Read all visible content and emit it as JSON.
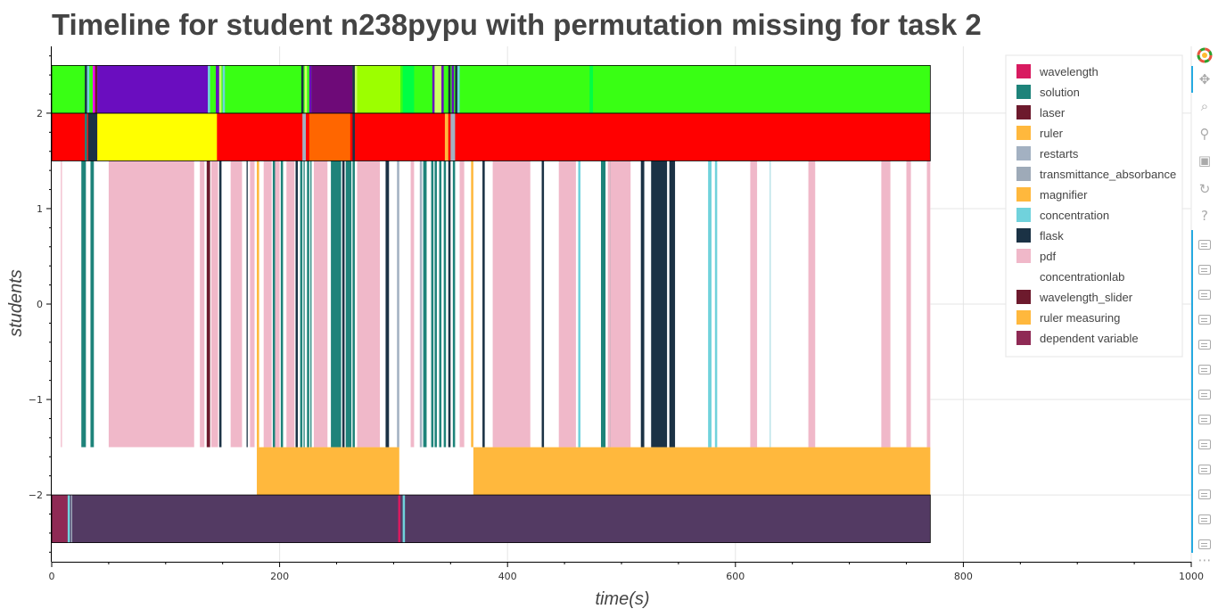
{
  "chart_data": {
    "type": "timeline",
    "title": "Timeline for student n238pypu with permutation missing for task 2",
    "xlabel": "time(s)",
    "ylabel": "students",
    "xlim": [
      0,
      1000
    ],
    "ylim": [
      -2.7,
      2.7
    ],
    "x_ticks": [
      0,
      200,
      400,
      600,
      800,
      1000
    ],
    "y_ticks": [
      -2,
      -1,
      0,
      1,
      2
    ],
    "y_tick_labels": [
      "−2",
      "−1",
      "0",
      "1",
      "2"
    ],
    "grid": true,
    "legend_placement": "top-right",
    "legend": [
      {
        "label": "wavelength",
        "color": "#d81b60"
      },
      {
        "label": "solution",
        "color": "#1e837a"
      },
      {
        "label": "laser",
        "color": "#6d1a2d"
      },
      {
        "label": "ruler",
        "color": "#ffb83d"
      },
      {
        "label": "restarts",
        "color": "#a3b1c2"
      },
      {
        "label": "transmittance_absorbance",
        "color": "#9eaab8"
      },
      {
        "label": "magnifier",
        "color": "#ffb83d"
      },
      {
        "label": "concentration",
        "color": "#70d2dc"
      },
      {
        "label": "flask",
        "color": "#1b3245"
      },
      {
        "label": "pdf",
        "color": "#f0b8c9"
      },
      {
        "label": "concentrationlab",
        "color": "#ffffff"
      },
      {
        "label": "wavelength_slider",
        "color": "#6d1a2d"
      },
      {
        "label": "ruler measuring",
        "color": "#ffb83d"
      },
      {
        "label": "dependent variable",
        "color": "#8f2a55"
      }
    ],
    "rows": [
      {
        "y_range": [
          2,
          2.5
        ],
        "base_color": "#39ff14",
        "segments": [
          {
            "start": 29,
            "end": 31,
            "color": "#1b3245"
          },
          {
            "start": 31,
            "end": 33,
            "color": "#70d2dc"
          },
          {
            "start": 36,
            "end": 38,
            "color": "#ff00ff"
          },
          {
            "start": 38,
            "end": 40,
            "color": "#6d1a2d"
          },
          {
            "start": 40,
            "end": 137,
            "color": "#6a0dbf"
          },
          {
            "start": 137,
            "end": 139,
            "color": "#70d2dc"
          },
          {
            "start": 144,
            "end": 147,
            "color": "#6a0dbf"
          },
          {
            "start": 147,
            "end": 149,
            "color": "#ccff66"
          },
          {
            "start": 150,
            "end": 152,
            "color": "#70d2dc"
          },
          {
            "start": 219,
            "end": 221,
            "color": "#1b3245"
          },
          {
            "start": 222,
            "end": 224,
            "color": "#ccff66"
          },
          {
            "start": 226,
            "end": 228,
            "color": "#6a0dbf"
          },
          {
            "start": 228,
            "end": 264,
            "color": "#6e0a78"
          },
          {
            "start": 264,
            "end": 266,
            "color": "#1b3245"
          },
          {
            "start": 266,
            "end": 268,
            "color": "#ccff66"
          },
          {
            "start": 268,
            "end": 306,
            "color": "#9cff00"
          },
          {
            "start": 306,
            "end": 308,
            "color": "#39ff14"
          },
          {
            "start": 308,
            "end": 318,
            "color": "#00ff44"
          },
          {
            "start": 334,
            "end": 336,
            "color": "#6a0dbf"
          },
          {
            "start": 336,
            "end": 342,
            "color": "#ccff66"
          },
          {
            "start": 342,
            "end": 344,
            "color": "#6a0dbf"
          },
          {
            "start": 348,
            "end": 350,
            "color": "#1b3245"
          },
          {
            "start": 351,
            "end": 353,
            "color": "#6a0dbf"
          },
          {
            "start": 354,
            "end": 356,
            "color": "#1b3245"
          },
          {
            "start": 356,
            "end": 358,
            "color": "#70d2dc"
          },
          {
            "start": 472,
            "end": 475,
            "color": "#00ff44"
          }
        ]
      },
      {
        "y_range": [
          1.5,
          2
        ],
        "base_color": "#ff0000",
        "segments": [
          {
            "start": 29,
            "end": 31,
            "color": "#1e837a"
          },
          {
            "start": 32,
            "end": 33,
            "color": "#70d2dc"
          },
          {
            "start": 32,
            "end": 40,
            "color": "#1b3245"
          },
          {
            "start": 40,
            "end": 145,
            "color": "#ffff00"
          },
          {
            "start": 220,
            "end": 223,
            "color": "#a3b1c2"
          },
          {
            "start": 226,
            "end": 262,
            "color": "#ff6600"
          },
          {
            "start": 264,
            "end": 266,
            "color": "#1b3245"
          },
          {
            "start": 345,
            "end": 348,
            "color": "#ffb83d"
          },
          {
            "start": 350,
            "end": 354,
            "color": "#a3b1c2"
          }
        ]
      },
      {
        "y_range": [
          -1.5,
          1.5
        ],
        "base_color": "#ffffff",
        "segments": [
          {
            "start": 8,
            "end": 9,
            "color": "#f0b8c9"
          },
          {
            "start": 26,
            "end": 30,
            "color": "#1e837a"
          },
          {
            "start": 34,
            "end": 37,
            "color": "#1e837a"
          },
          {
            "start": 50,
            "end": 125,
            "color": "#f0b8c9"
          },
          {
            "start": 130,
            "end": 134,
            "color": "#f0b8c9"
          },
          {
            "start": 136,
            "end": 139,
            "color": "#6d1a2d"
          },
          {
            "start": 140,
            "end": 146,
            "color": "#f0b8c9"
          },
          {
            "start": 147,
            "end": 149,
            "color": "#1b3245"
          },
          {
            "start": 157,
            "end": 167,
            "color": "#f0b8c9"
          },
          {
            "start": 171,
            "end": 172,
            "color": "#1b3245"
          },
          {
            "start": 174,
            "end": 178,
            "color": "#f0b8c9"
          },
          {
            "start": 180,
            "end": 182,
            "color": "#ffb83d"
          },
          {
            "start": 186,
            "end": 193,
            "color": "#f0b8c9"
          },
          {
            "start": 194,
            "end": 196,
            "color": "#1e837a"
          },
          {
            "start": 196,
            "end": 200,
            "color": "#f0b8c9"
          },
          {
            "start": 201,
            "end": 203,
            "color": "#1e837a"
          },
          {
            "start": 206,
            "end": 213,
            "color": "#f0b8c9"
          },
          {
            "start": 214,
            "end": 216,
            "color": "#1b3245"
          },
          {
            "start": 218,
            "end": 220,
            "color": "#1e837a"
          },
          {
            "start": 221,
            "end": 222,
            "color": "#1e837a"
          },
          {
            "start": 224,
            "end": 226,
            "color": "#1e837a"
          },
          {
            "start": 227,
            "end": 228,
            "color": "#1e837a"
          },
          {
            "start": 230,
            "end": 242,
            "color": "#f0b8c9"
          },
          {
            "start": 245,
            "end": 254,
            "color": "#1e837a"
          },
          {
            "start": 255,
            "end": 257,
            "color": "#1b3245"
          },
          {
            "start": 258,
            "end": 263,
            "color": "#1e837a"
          },
          {
            "start": 264,
            "end": 266,
            "color": "#1e837a"
          },
          {
            "start": 268,
            "end": 288,
            "color": "#f0b8c9"
          },
          {
            "start": 293,
            "end": 296,
            "color": "#1b3245"
          },
          {
            "start": 303,
            "end": 305,
            "color": "#a3b1c2"
          },
          {
            "start": 315,
            "end": 318,
            "color": "#f0b8c9"
          },
          {
            "start": 323,
            "end": 325,
            "color": "#a3b1c2"
          },
          {
            "start": 326,
            "end": 329,
            "color": "#1e837a"
          },
          {
            "start": 333,
            "end": 335,
            "color": "#1e837a"
          },
          {
            "start": 336,
            "end": 338,
            "color": "#1e837a"
          },
          {
            "start": 340,
            "end": 342,
            "color": "#1e837a"
          },
          {
            "start": 344,
            "end": 346,
            "color": "#1e837a"
          },
          {
            "start": 348,
            "end": 350,
            "color": "#1b3245"
          },
          {
            "start": 352,
            "end": 354,
            "color": "#1e837a"
          },
          {
            "start": 358,
            "end": 362,
            "color": "#f0b8c9"
          },
          {
            "start": 368,
            "end": 370,
            "color": "#ffb83d"
          },
          {
            "start": 378,
            "end": 380,
            "color": "#1b3245"
          },
          {
            "start": 387,
            "end": 420,
            "color": "#f0b8c9"
          },
          {
            "start": 430,
            "end": 432,
            "color": "#1b3245"
          },
          {
            "start": 445,
            "end": 460,
            "color": "#f0b8c9"
          },
          {
            "start": 462,
            "end": 464,
            "color": "#70d2dc"
          },
          {
            "start": 482,
            "end": 486,
            "color": "#1e837a"
          },
          {
            "start": 488,
            "end": 490,
            "color": "#f0b8c9"
          },
          {
            "start": 490,
            "end": 492,
            "color": "#1e837a"
          },
          {
            "start": 490,
            "end": 508,
            "color": "#f0b8c9"
          },
          {
            "start": 517,
            "end": 520,
            "color": "#1b3245"
          },
          {
            "start": 526,
            "end": 540,
            "color": "#1b3245"
          },
          {
            "start": 542,
            "end": 547,
            "color": "#1b3245"
          },
          {
            "start": 576,
            "end": 579,
            "color": "#70d2dc"
          },
          {
            "start": 582,
            "end": 584,
            "color": "#70d2dc"
          },
          {
            "start": 613,
            "end": 619,
            "color": "#f0b8c9"
          },
          {
            "start": 630,
            "end": 631,
            "color": "#b0e0e6"
          },
          {
            "start": 664,
            "end": 670,
            "color": "#f0b8c9"
          },
          {
            "start": 728,
            "end": 736,
            "color": "#f0b8c9"
          },
          {
            "start": 750,
            "end": 754,
            "color": "#f0b8c9"
          },
          {
            "start": 768,
            "end": 771,
            "color": "#f0b8c9"
          }
        ]
      },
      {
        "y_range": [
          -2,
          -1.5
        ],
        "base_color": "#ffffff",
        "segments": [
          {
            "start": 180,
            "end": 305,
            "color": "#ffb83d"
          },
          {
            "start": 370,
            "end": 771,
            "color": "#ffb83d"
          }
        ]
      },
      {
        "y_range": [
          -2.5,
          -2
        ],
        "base_color": "#533a63",
        "segments": [
          {
            "start": 0,
            "end": 14,
            "color": "#8f2a55"
          },
          {
            "start": 14,
            "end": 16,
            "color": "#70d2dc"
          },
          {
            "start": 17,
            "end": 18,
            "color": "#a3b1c2"
          },
          {
            "start": 304,
            "end": 306,
            "color": "#d81b60"
          },
          {
            "start": 308,
            "end": 310,
            "color": "#70d2dc"
          }
        ]
      }
    ],
    "data_end": 771
  },
  "toolbar": {
    "tools": [
      "bokeh-logo-icon",
      "pan-icon",
      "box-zoom-icon",
      "wheel-zoom-icon",
      "save-icon",
      "reset-icon",
      "help-icon"
    ],
    "glyphs": [
      "",
      "✥",
      "⌕",
      "⚲",
      "▣",
      "↻",
      "?"
    ],
    "more": "⋯"
  }
}
